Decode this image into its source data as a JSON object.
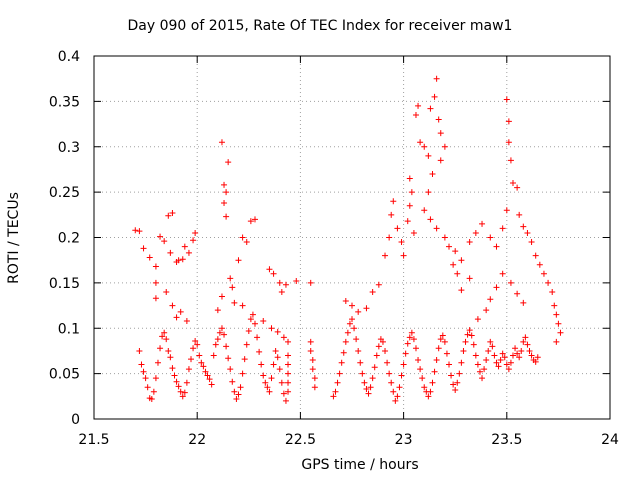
{
  "chart_data": {
    "type": "scatter",
    "title": "Day 090 of 2015, Rate Of TEC Index for receiver maw1",
    "xlabel": "GPS time / hours",
    "ylabel": "ROTI / TECUs",
    "xlim": [
      21.5,
      24
    ],
    "ylim": [
      0,
      0.4
    ],
    "xticks": [
      "21.5",
      "22",
      "22.5",
      "23",
      "23.5",
      "24"
    ],
    "yticks": [
      "0",
      "0.05",
      "0.1",
      "0.15",
      "0.2",
      "0.25",
      "0.3",
      "0.35",
      "0.4"
    ],
    "grid": true,
    "marker": "+",
    "color": "#ff0000",
    "series": [
      {
        "name": "maw1",
        "points": [
          [
            21.7,
            0.208
          ],
          [
            21.72,
            0.207
          ],
          [
            21.74,
            0.188
          ],
          [
            21.77,
            0.178
          ],
          [
            21.8,
            0.168
          ],
          [
            21.8,
            0.15
          ],
          [
            21.82,
            0.201
          ],
          [
            21.84,
            0.196
          ],
          [
            21.86,
            0.224
          ],
          [
            21.88,
            0.227
          ],
          [
            21.87,
            0.183
          ],
          [
            21.9,
            0.173
          ],
          [
            21.91,
            0.175
          ],
          [
            21.93,
            0.176
          ],
          [
            21.94,
            0.19
          ],
          [
            21.96,
            0.183
          ],
          [
            21.98,
            0.197
          ],
          [
            21.99,
            0.205
          ],
          [
            21.72,
            0.075
          ],
          [
            21.73,
            0.06
          ],
          [
            21.74,
            0.052
          ],
          [
            21.75,
            0.045
          ],
          [
            21.76,
            0.035
          ],
          [
            21.77,
            0.023
          ],
          [
            21.78,
            0.022
          ],
          [
            21.79,
            0.03
          ],
          [
            21.8,
            0.045
          ],
          [
            21.81,
            0.062
          ],
          [
            21.82,
            0.078
          ],
          [
            21.83,
            0.091
          ],
          [
            21.84,
            0.095
          ],
          [
            21.85,
            0.088
          ],
          [
            21.86,
            0.075
          ],
          [
            21.87,
            0.068
          ],
          [
            21.88,
            0.056
          ],
          [
            21.89,
            0.048
          ],
          [
            21.9,
            0.041
          ],
          [
            21.91,
            0.036
          ],
          [
            21.92,
            0.03
          ],
          [
            21.93,
            0.025
          ],
          [
            21.94,
            0.029
          ],
          [
            21.95,
            0.04
          ],
          [
            21.96,
            0.055
          ],
          [
            21.97,
            0.066
          ],
          [
            21.98,
            0.078
          ],
          [
            21.99,
            0.086
          ],
          [
            22.0,
            0.082
          ],
          [
            22.01,
            0.07
          ],
          [
            22.02,
            0.062
          ],
          [
            22.03,
            0.058
          ],
          [
            22.04,
            0.052
          ],
          [
            22.05,
            0.048
          ],
          [
            22.06,
            0.044
          ],
          [
            22.07,
            0.038
          ],
          [
            22.08,
            0.07
          ],
          [
            22.09,
            0.082
          ],
          [
            22.1,
            0.088
          ],
          [
            22.11,
            0.095
          ],
          [
            22.12,
            0.1
          ],
          [
            22.13,
            0.093
          ],
          [
            22.14,
            0.08
          ],
          [
            22.15,
            0.067
          ],
          [
            22.16,
            0.055
          ],
          [
            22.17,
            0.041
          ],
          [
            22.18,
            0.03
          ],
          [
            22.19,
            0.022
          ],
          [
            22.2,
            0.027
          ],
          [
            22.21,
            0.035
          ],
          [
            22.22,
            0.05
          ],
          [
            22.23,
            0.066
          ],
          [
            22.24,
            0.082
          ],
          [
            22.25,
            0.097
          ],
          [
            22.26,
            0.11
          ],
          [
            22.27,
            0.115
          ],
          [
            22.28,
            0.105
          ],
          [
            22.29,
            0.09
          ],
          [
            22.3,
            0.074
          ],
          [
            22.31,
            0.06
          ],
          [
            22.32,
            0.048
          ],
          [
            22.33,
            0.04
          ],
          [
            22.34,
            0.035
          ],
          [
            22.35,
            0.03
          ],
          [
            22.36,
            0.045
          ],
          [
            22.37,
            0.06
          ],
          [
            22.38,
            0.075
          ],
          [
            22.39,
            0.068
          ],
          [
            22.4,
            0.055
          ],
          [
            22.41,
            0.04
          ],
          [
            22.42,
            0.028
          ],
          [
            22.43,
            0.02
          ],
          [
            21.85,
            0.14
          ],
          [
            21.88,
            0.125
          ],
          [
            21.9,
            0.112
          ],
          [
            21.92,
            0.118
          ],
          [
            21.95,
            0.108
          ],
          [
            21.8,
            0.133
          ],
          [
            22.12,
            0.305
          ],
          [
            22.15,
            0.283
          ],
          [
            22.13,
            0.258
          ],
          [
            22.14,
            0.25
          ],
          [
            22.13,
            0.238
          ],
          [
            22.14,
            0.223
          ],
          [
            22.22,
            0.2
          ],
          [
            22.24,
            0.195
          ],
          [
            22.26,
            0.218
          ],
          [
            22.28,
            0.22
          ],
          [
            22.2,
            0.175
          ],
          [
            22.16,
            0.155
          ],
          [
            22.17,
            0.145
          ],
          [
            22.12,
            0.135
          ],
          [
            22.1,
            0.12
          ],
          [
            22.18,
            0.128
          ],
          [
            22.22,
            0.125
          ],
          [
            22.35,
            0.165
          ],
          [
            22.37,
            0.16
          ],
          [
            22.4,
            0.15
          ],
          [
            22.41,
            0.14
          ],
          [
            22.43,
            0.148
          ],
          [
            22.48,
            0.152
          ],
          [
            22.32,
            0.108
          ],
          [
            22.36,
            0.1
          ],
          [
            22.39,
            0.096
          ],
          [
            22.42,
            0.09
          ],
          [
            22.44,
            0.085
          ],
          [
            22.44,
            0.07
          ],
          [
            22.44,
            0.06
          ],
          [
            22.44,
            0.05
          ],
          [
            22.44,
            0.04
          ],
          [
            22.44,
            0.03
          ],
          [
            22.55,
            0.085
          ],
          [
            22.55,
            0.075
          ],
          [
            22.56,
            0.065
          ],
          [
            22.56,
            0.055
          ],
          [
            22.57,
            0.045
          ],
          [
            22.57,
            0.035
          ],
          [
            22.55,
            0.15
          ],
          [
            22.66,
            0.025
          ],
          [
            22.67,
            0.03
          ],
          [
            22.68,
            0.04
          ],
          [
            22.69,
            0.05
          ],
          [
            22.7,
            0.062
          ],
          [
            22.71,
            0.073
          ],
          [
            22.72,
            0.085
          ],
          [
            22.73,
            0.095
          ],
          [
            22.74,
            0.105
          ],
          [
            22.75,
            0.11
          ],
          [
            22.76,
            0.1
          ],
          [
            22.77,
            0.088
          ],
          [
            22.78,
            0.075
          ],
          [
            22.79,
            0.062
          ],
          [
            22.8,
            0.05
          ],
          [
            22.81,
            0.04
          ],
          [
            22.82,
            0.033
          ],
          [
            22.83,
            0.028
          ],
          [
            22.84,
            0.035
          ],
          [
            22.85,
            0.045
          ],
          [
            22.86,
            0.057
          ],
          [
            22.87,
            0.07
          ],
          [
            22.88,
            0.08
          ],
          [
            22.89,
            0.088
          ],
          [
            22.9,
            0.085
          ],
          [
            22.91,
            0.075
          ],
          [
            22.92,
            0.062
          ],
          [
            22.93,
            0.05
          ],
          [
            22.94,
            0.04
          ],
          [
            22.95,
            0.03
          ],
          [
            22.96,
            0.02
          ],
          [
            22.97,
            0.025
          ],
          [
            22.98,
            0.035
          ],
          [
            22.99,
            0.048
          ],
          [
            23.0,
            0.06
          ],
          [
            23.01,
            0.072
          ],
          [
            23.02,
            0.083
          ],
          [
            23.03,
            0.09
          ],
          [
            23.04,
            0.095
          ],
          [
            23.05,
            0.088
          ],
          [
            23.06,
            0.078
          ],
          [
            23.07,
            0.065
          ],
          [
            23.08,
            0.055
          ],
          [
            23.09,
            0.045
          ],
          [
            23.1,
            0.035
          ],
          [
            23.11,
            0.03
          ],
          [
            23.12,
            0.025
          ],
          [
            23.13,
            0.03
          ],
          [
            23.14,
            0.04
          ],
          [
            23.15,
            0.052
          ],
          [
            23.16,
            0.065
          ],
          [
            23.17,
            0.078
          ],
          [
            23.18,
            0.088
          ],
          [
            23.19,
            0.092
          ],
          [
            23.2,
            0.085
          ],
          [
            23.21,
            0.072
          ],
          [
            23.22,
            0.06
          ],
          [
            23.23,
            0.048
          ],
          [
            23.24,
            0.038
          ],
          [
            23.25,
            0.032
          ],
          [
            23.26,
            0.04
          ],
          [
            23.27,
            0.05
          ],
          [
            23.28,
            0.062
          ],
          [
            23.29,
            0.075
          ],
          [
            23.3,
            0.085
          ],
          [
            23.31,
            0.093
          ],
          [
            23.32,
            0.098
          ],
          [
            23.33,
            0.092
          ],
          [
            23.34,
            0.082
          ],
          [
            23.35,
            0.07
          ],
          [
            23.36,
            0.06
          ],
          [
            23.37,
            0.052
          ],
          [
            23.38,
            0.045
          ],
          [
            23.39,
            0.055
          ],
          [
            23.4,
            0.065
          ],
          [
            23.41,
            0.075
          ],
          [
            23.42,
            0.085
          ],
          [
            23.43,
            0.08
          ],
          [
            23.44,
            0.07
          ],
          [
            23.45,
            0.062
          ],
          [
            23.46,
            0.058
          ],
          [
            23.47,
            0.065
          ],
          [
            23.48,
            0.072
          ],
          [
            23.49,
            0.068
          ],
          [
            23.5,
            0.06
          ],
          [
            23.51,
            0.055
          ],
          [
            23.52,
            0.062
          ],
          [
            23.53,
            0.07
          ],
          [
            23.54,
            0.078
          ],
          [
            23.55,
            0.072
          ],
          [
            23.56,
            0.068
          ],
          [
            23.57,
            0.075
          ],
          [
            23.58,
            0.085
          ],
          [
            23.59,
            0.09
          ],
          [
            23.6,
            0.082
          ],
          [
            23.61,
            0.075
          ],
          [
            23.62,
            0.07
          ],
          [
            23.63,
            0.065
          ],
          [
            23.64,
            0.063
          ],
          [
            23.65,
            0.068
          ],
          [
            22.72,
            0.13
          ],
          [
            22.75,
            0.125
          ],
          [
            22.78,
            0.118
          ],
          [
            22.82,
            0.122
          ],
          [
            22.85,
            0.14
          ],
          [
            22.88,
            0.148
          ],
          [
            22.91,
            0.18
          ],
          [
            22.93,
            0.2
          ],
          [
            22.94,
            0.225
          ],
          [
            22.95,
            0.24
          ],
          [
            22.97,
            0.21
          ],
          [
            22.99,
            0.195
          ],
          [
            23.0,
            0.18
          ],
          [
            23.02,
            0.218
          ],
          [
            23.03,
            0.235
          ],
          [
            23.05,
            0.205
          ],
          [
            23.03,
            0.265
          ],
          [
            23.04,
            0.25
          ],
          [
            23.06,
            0.335
          ],
          [
            23.07,
            0.345
          ],
          [
            23.08,
            0.305
          ],
          [
            23.1,
            0.3
          ],
          [
            23.12,
            0.29
          ],
          [
            23.13,
            0.342
          ],
          [
            23.15,
            0.355
          ],
          [
            23.16,
            0.375
          ],
          [
            23.17,
            0.33
          ],
          [
            23.18,
            0.315
          ],
          [
            23.2,
            0.3
          ],
          [
            23.18,
            0.285
          ],
          [
            23.14,
            0.27
          ],
          [
            23.12,
            0.25
          ],
          [
            23.1,
            0.23
          ],
          [
            23.13,
            0.22
          ],
          [
            23.16,
            0.21
          ],
          [
            23.2,
            0.2
          ],
          [
            23.22,
            0.19
          ],
          [
            23.25,
            0.185
          ],
          [
            23.28,
            0.175
          ],
          [
            23.32,
            0.195
          ],
          [
            23.35,
            0.205
          ],
          [
            23.38,
            0.215
          ],
          [
            23.42,
            0.2
          ],
          [
            23.45,
            0.19
          ],
          [
            23.48,
            0.21
          ],
          [
            23.5,
            0.23
          ],
          [
            23.51,
            0.305
          ],
          [
            23.52,
            0.285
          ],
          [
            23.5,
            0.352
          ],
          [
            23.51,
            0.328
          ],
          [
            23.53,
            0.26
          ],
          [
            23.55,
            0.255
          ],
          [
            23.56,
            0.225
          ],
          [
            23.58,
            0.212
          ],
          [
            23.6,
            0.205
          ],
          [
            23.62,
            0.195
          ],
          [
            23.64,
            0.18
          ],
          [
            23.66,
            0.17
          ],
          [
            23.68,
            0.16
          ],
          [
            23.7,
            0.15
          ],
          [
            23.72,
            0.14
          ],
          [
            23.73,
            0.125
          ],
          [
            23.74,
            0.115
          ],
          [
            23.75,
            0.105
          ],
          [
            23.76,
            0.095
          ],
          [
            23.74,
            0.085
          ],
          [
            23.48,
            0.16
          ],
          [
            23.52,
            0.15
          ],
          [
            23.55,
            0.138
          ],
          [
            23.58,
            0.128
          ],
          [
            23.45,
            0.145
          ],
          [
            23.42,
            0.132
          ],
          [
            23.4,
            0.12
          ],
          [
            23.36,
            0.11
          ],
          [
            23.32,
            0.155
          ],
          [
            23.28,
            0.142
          ],
          [
            23.26,
            0.16
          ],
          [
            23.24,
            0.17
          ]
        ]
      }
    ]
  }
}
